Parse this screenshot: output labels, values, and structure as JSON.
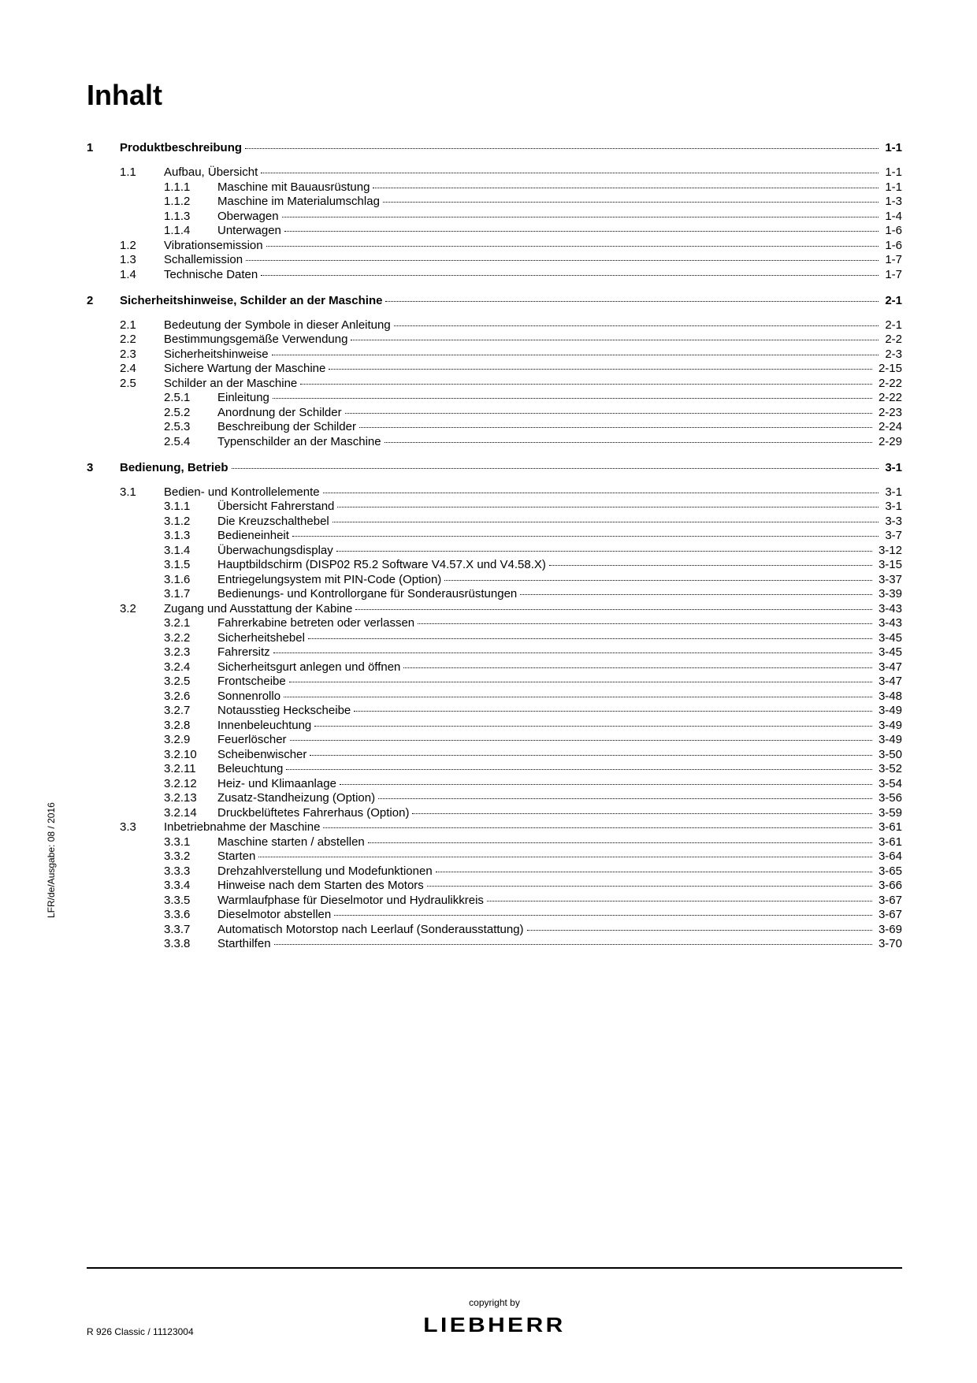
{
  "title": "Inhalt",
  "side_text": "LFR/de/Ausgabe: 08 / 2016",
  "footer": {
    "doc_id": "R 926 Classic / 11123004",
    "copyright": "copyright by",
    "brand": "LIEBHERR"
  },
  "toc": [
    {
      "type": "chapter",
      "num": "1",
      "title": "Produktbeschreibung",
      "page": "1-1"
    },
    {
      "type": "gap"
    },
    {
      "type": "section",
      "num": "1.1",
      "title": "Aufbau, Übersicht",
      "page": "1-1"
    },
    {
      "type": "sub",
      "num": "1.1.1",
      "title": "Maschine mit Bauausrüstung",
      "page": "1-1"
    },
    {
      "type": "sub",
      "num": "1.1.2",
      "title": "Maschine im Materialumschlag",
      "page": "1-3"
    },
    {
      "type": "sub",
      "num": "1.1.3",
      "title": "Oberwagen",
      "page": "1-4"
    },
    {
      "type": "sub",
      "num": "1.1.4",
      "title": "Unterwagen",
      "page": "1-6"
    },
    {
      "type": "section",
      "num": "1.2",
      "title": "Vibrationsemission",
      "page": "1-6"
    },
    {
      "type": "section",
      "num": "1.3",
      "title": "Schallemission",
      "page": "1-7"
    },
    {
      "type": "section",
      "num": "1.4",
      "title": "Technische Daten",
      "page": "1-7"
    },
    {
      "type": "chapter",
      "num": "2",
      "title": "Sicherheitshinweise, Schilder an der Maschine",
      "page": "2-1"
    },
    {
      "type": "gap"
    },
    {
      "type": "section",
      "num": "2.1",
      "title": "Bedeutung der Symbole in dieser Anleitung",
      "page": "2-1"
    },
    {
      "type": "section",
      "num": "2.2",
      "title": "Bestimmungsgemäße Verwendung",
      "page": "2-2"
    },
    {
      "type": "section",
      "num": "2.3",
      "title": "Sicherheitshinweise",
      "page": "2-3"
    },
    {
      "type": "section",
      "num": "2.4",
      "title": "Sichere Wartung der Maschine",
      "page": "2-15"
    },
    {
      "type": "section",
      "num": "2.5",
      "title": "Schilder an der Maschine",
      "page": "2-22"
    },
    {
      "type": "sub",
      "num": "2.5.1",
      "title": "Einleitung",
      "page": "2-22"
    },
    {
      "type": "sub",
      "num": "2.5.2",
      "title": "Anordnung der Schilder",
      "page": "2-23"
    },
    {
      "type": "sub",
      "num": "2.5.3",
      "title": "Beschreibung der Schilder",
      "page": "2-24"
    },
    {
      "type": "sub",
      "num": "2.5.4",
      "title": "Typenschilder an der Maschine",
      "page": "2-29"
    },
    {
      "type": "chapter",
      "num": "3",
      "title": "Bedienung, Betrieb",
      "page": "3-1"
    },
    {
      "type": "gap"
    },
    {
      "type": "section",
      "num": "3.1",
      "title": "Bedien- und Kontrollelemente",
      "page": "3-1"
    },
    {
      "type": "sub",
      "num": "3.1.1",
      "title": "Übersicht Fahrerstand",
      "page": "3-1"
    },
    {
      "type": "sub",
      "num": "3.1.2",
      "title": "Die Kreuzschalthebel",
      "page": "3-3"
    },
    {
      "type": "sub",
      "num": "3.1.3",
      "title": "Bedieneinheit",
      "page": "3-7"
    },
    {
      "type": "sub",
      "num": "3.1.4",
      "title": "Überwachungsdisplay",
      "page": "3-12"
    },
    {
      "type": "sub",
      "num": "3.1.5",
      "title": "Hauptbildschirm (DISP02 R5.2 Software V4.57.X und V4.58.X)",
      "page": "3-15"
    },
    {
      "type": "sub",
      "num": "3.1.6",
      "title": "Entriegelungsystem mit PIN-Code (Option)",
      "page": "3-37"
    },
    {
      "type": "sub",
      "num": "3.1.7",
      "title": "Bedienungs- und Kontrollorgane für Sonderausrüstungen",
      "page": "3-39"
    },
    {
      "type": "section",
      "num": "3.2",
      "title": "Zugang und Ausstattung der Kabine",
      "page": "3-43"
    },
    {
      "type": "sub",
      "num": "3.2.1",
      "title": "Fahrerkabine betreten oder verlassen",
      "page": "3-43"
    },
    {
      "type": "sub",
      "num": "3.2.2",
      "title": "Sicherheitshebel",
      "page": "3-45"
    },
    {
      "type": "sub",
      "num": "3.2.3",
      "title": "Fahrersitz",
      "page": "3-45"
    },
    {
      "type": "sub",
      "num": "3.2.4",
      "title": "Sicherheitsgurt anlegen und öffnen",
      "page": "3-47"
    },
    {
      "type": "sub",
      "num": "3.2.5",
      "title": "Frontscheibe",
      "page": "3-47"
    },
    {
      "type": "sub",
      "num": "3.2.6",
      "title": "Sonnenrollo",
      "page": "3-48"
    },
    {
      "type": "sub",
      "num": "3.2.7",
      "title": "Notausstieg Heckscheibe",
      "page": "3-49"
    },
    {
      "type": "sub",
      "num": "3.2.8",
      "title": "Innenbeleuchtung",
      "page": "3-49"
    },
    {
      "type": "sub",
      "num": "3.2.9",
      "title": "Feuerlöscher",
      "page": "3-49"
    },
    {
      "type": "sub",
      "num": "3.2.10",
      "title": "Scheibenwischer",
      "page": "3-50"
    },
    {
      "type": "sub",
      "num": "3.2.11",
      "title": "Beleuchtung",
      "page": "3-52"
    },
    {
      "type": "sub",
      "num": "3.2.12",
      "title": "Heiz- und Klimaanlage",
      "page": "3-54"
    },
    {
      "type": "sub",
      "num": "3.2.13",
      "title": "Zusatz-Standheizung (Option)",
      "page": "3-56"
    },
    {
      "type": "sub",
      "num": "3.2.14",
      "title": "Druckbelüftetes Fahrerhaus (Option)",
      "page": "3-59"
    },
    {
      "type": "section",
      "num": "3.3",
      "title": "Inbetriebnahme der Maschine",
      "page": "3-61"
    },
    {
      "type": "sub",
      "num": "3.3.1",
      "title": "Maschine starten / abstellen",
      "page": "3-61"
    },
    {
      "type": "sub",
      "num": "3.3.2",
      "title": "Starten",
      "page": "3-64"
    },
    {
      "type": "sub",
      "num": "3.3.3",
      "title": "Drehzahlverstellung und Modefunktionen",
      "page": "3-65"
    },
    {
      "type": "sub",
      "num": "3.3.4",
      "title": "Hinweise nach dem Starten des Motors",
      "page": "3-66"
    },
    {
      "type": "sub",
      "num": "3.3.5",
      "title": "Warmlaufphase für Dieselmotor und Hydraulikkreis",
      "page": "3-67"
    },
    {
      "type": "sub",
      "num": "3.3.6",
      "title": "Dieselmotor abstellen",
      "page": "3-67"
    },
    {
      "type": "sub",
      "num": "3.3.7",
      "title": "Automatisch Motorstop nach Leerlauf (Sonderausstattung)",
      "page": "3-69"
    },
    {
      "type": "sub",
      "num": "3.3.8",
      "title": "Starthilfen",
      "page": "3-70"
    }
  ]
}
